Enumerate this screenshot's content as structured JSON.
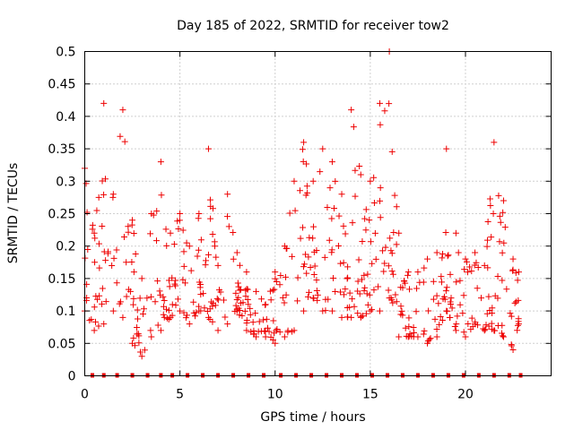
{
  "chart_data": {
    "type": "scatter",
    "title": "Day 185 of 2022, SRMTID for receiver tow2",
    "xlabel": "GPS time / hours",
    "ylabel": "SRMTID / TECUs",
    "xlim": [
      0,
      24.5
    ],
    "ylim": [
      0,
      0.5
    ],
    "x_ticks": [
      0,
      5,
      10,
      15,
      20
    ],
    "x_tick_labels": [
      "0",
      "5",
      "10",
      "15",
      "20"
    ],
    "y_ticks": [
      0,
      0.05,
      0.1,
      0.15,
      0.2,
      0.25,
      0.3,
      0.35,
      0.4,
      0.45,
      0.5
    ],
    "y_tick_labels": [
      "0",
      "0.05",
      "0.1",
      "0.15",
      "0.2",
      "0.25",
      "0.3",
      "0.35",
      "0.4",
      "0.45",
      "0.5"
    ],
    "grid": true,
    "marker": "plus",
    "color": "#ee0000",
    "zero_markers_x": [
      0.4,
      1.0,
      1.7,
      2.5,
      3.3,
      4.0,
      4.6,
      5.4,
      6.2,
      7.0,
      7.8,
      8.6,
      9.4,
      10.3,
      11.1,
      11.9,
      12.7,
      13.5,
      14.3,
      15.1,
      15.9,
      16.7,
      17.5,
      18.3,
      19.1,
      19.9,
      20.7,
      21.5,
      22.3,
      22.9
    ],
    "envelope": [
      [
        0.0,
        0.1,
        0.32
      ],
      [
        0.5,
        0.07,
        0.22
      ],
      [
        1.0,
        0.08,
        0.42
      ],
      [
        1.5,
        0.1,
        0.28
      ],
      [
        2.0,
        0.09,
        0.41
      ],
      [
        2.5,
        0.05,
        0.24
      ],
      [
        3.0,
        0.03,
        0.15
      ],
      [
        3.5,
        0.06,
        0.25
      ],
      [
        4.0,
        0.07,
        0.33
      ],
      [
        4.5,
        0.09,
        0.22
      ],
      [
        5.0,
        0.1,
        0.25
      ],
      [
        5.5,
        0.08,
        0.2
      ],
      [
        6.0,
        0.1,
        0.25
      ],
      [
        6.5,
        0.09,
        0.35
      ],
      [
        7.0,
        0.07,
        0.17
      ],
      [
        7.5,
        0.08,
        0.28
      ],
      [
        8.0,
        0.1,
        0.19
      ],
      [
        8.5,
        0.07,
        0.16
      ],
      [
        9.0,
        0.06,
        0.13
      ],
      [
        9.5,
        0.06,
        0.11
      ],
      [
        10.0,
        0.05,
        0.16
      ],
      [
        10.5,
        0.06,
        0.2
      ],
      [
        11.0,
        0.07,
        0.3
      ],
      [
        11.5,
        0.1,
        0.36
      ],
      [
        12.0,
        0.12,
        0.3
      ],
      [
        12.5,
        0.1,
        0.35
      ],
      [
        13.0,
        0.1,
        0.33
      ],
      [
        13.5,
        0.09,
        0.28
      ],
      [
        14.0,
        0.09,
        0.41
      ],
      [
        14.5,
        0.09,
        0.31
      ],
      [
        15.0,
        0.1,
        0.3
      ],
      [
        15.5,
        0.1,
        0.42
      ],
      [
        16.0,
        0.12,
        0.5
      ],
      [
        16.5,
        0.06,
        0.22
      ],
      [
        17.0,
        0.06,
        0.16
      ],
      [
        17.5,
        0.06,
        0.16
      ],
      [
        18.0,
        0.05,
        0.18
      ],
      [
        18.5,
        0.06,
        0.19
      ],
      [
        19.0,
        0.1,
        0.35
      ],
      [
        19.5,
        0.07,
        0.22
      ],
      [
        20.0,
        0.06,
        0.18
      ],
      [
        20.5,
        0.08,
        0.19
      ],
      [
        21.0,
        0.07,
        0.17
      ],
      [
        21.5,
        0.07,
        0.36
      ],
      [
        22.0,
        0.06,
        0.27
      ],
      [
        22.5,
        0.04,
        0.18
      ],
      [
        22.8,
        0.08,
        0.16
      ]
    ],
    "points_per_hour": 22,
    "seed": 185
  }
}
